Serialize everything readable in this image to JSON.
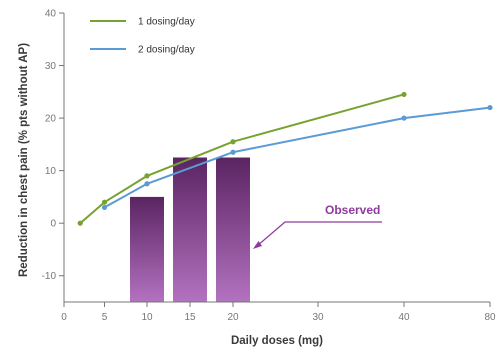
{
  "chart_data": {
    "type": "line",
    "xlabel": "Daily doses (mg)",
    "ylabel": "Reduction in chest pain (% pts without AP)",
    "x_ticks": [
      0,
      5,
      10,
      15,
      20,
      30,
      40,
      80
    ],
    "y_ticks": [
      -10,
      0,
      10,
      20,
      30,
      40
    ],
    "ylim": [
      -15,
      40
    ],
    "grid": false,
    "legend_position": "top-left",
    "series": [
      {
        "name": "1 dosing/day",
        "color": "#78a22f",
        "points": [
          {
            "x": 2,
            "y": 0
          },
          {
            "x": 5,
            "y": 4
          },
          {
            "x": 10,
            "y": 9
          },
          {
            "x": 20,
            "y": 15.5
          },
          {
            "x": 40,
            "y": 24.5
          }
        ]
      },
      {
        "name": "2 dosing/day",
        "color": "#5b9bd5",
        "points": [
          {
            "x": 5,
            "y": 3
          },
          {
            "x": 10,
            "y": 7.5
          },
          {
            "x": 20,
            "y": 13.5
          },
          {
            "x": 40,
            "y": 20
          },
          {
            "x": 80,
            "y": 22
          }
        ]
      }
    ],
    "bars": {
      "name": "Observed",
      "color_top": "#5a2461",
      "color_bottom": "#b372c0",
      "items": [
        {
          "x": 10,
          "y": 5
        },
        {
          "x": 15,
          "y": 12.5
        },
        {
          "x": 20,
          "y": 12.5
        }
      ]
    },
    "annotation": {
      "text": "Observed",
      "color": "#8e3a9d"
    }
  }
}
